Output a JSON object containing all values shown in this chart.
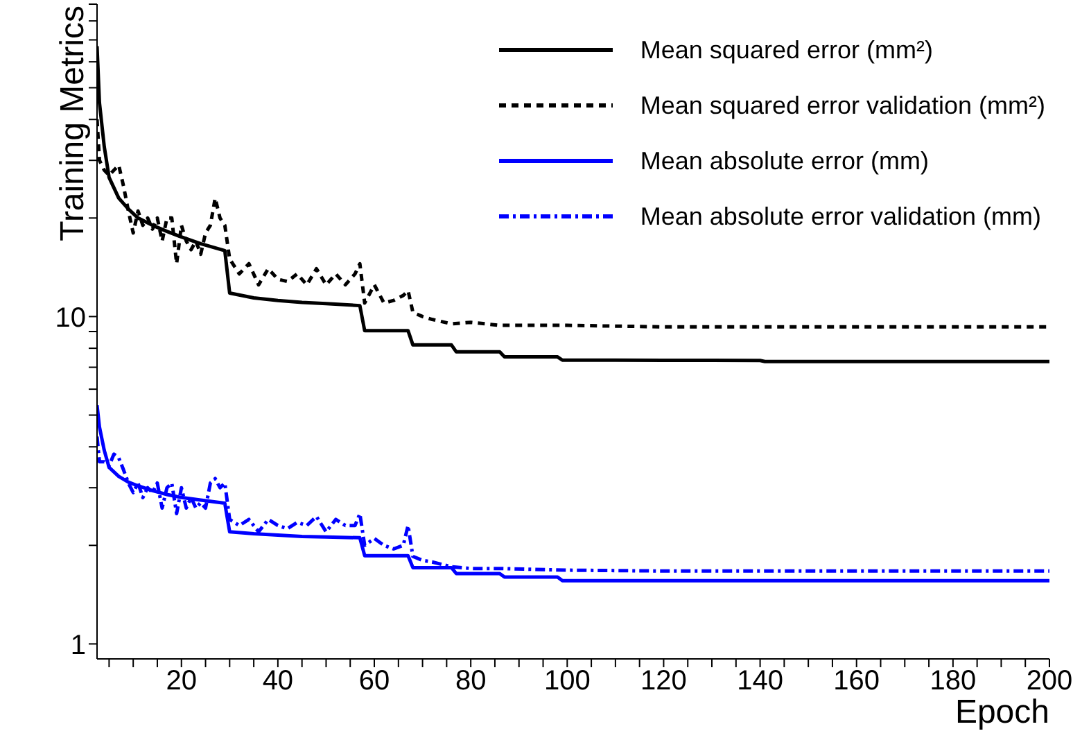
{
  "chart_data": {
    "type": "line",
    "xlabel": "Epoch",
    "ylabel": "Training Metrics",
    "log": "y",
    "grid": false,
    "legend": "top right",
    "marker": "none",
    "xlim": [
      2.5,
      200
    ],
    "ylim": [
      0.9,
      90
    ],
    "xticks": [
      {
        "value": 5,
        "label": null
      },
      {
        "value": 10,
        "label": null
      },
      {
        "value": 15,
        "label": null
      },
      20,
      {
        "value": 25,
        "label": null
      },
      {
        "value": 30,
        "label": null
      },
      {
        "value": 35,
        "label": null
      },
      40,
      {
        "value": 45,
        "label": null
      },
      {
        "value": 50,
        "label": null
      },
      {
        "value": 55,
        "label": null
      },
      60,
      {
        "value": 65,
        "label": null
      },
      {
        "value": 70,
        "label": null
      },
      {
        "value": 75,
        "label": null
      },
      80,
      {
        "value": 85,
        "label": null
      },
      {
        "value": 90,
        "label": null
      },
      {
        "value": 95,
        "label": null
      },
      100,
      {
        "value": 105,
        "label": null
      },
      {
        "value": 110,
        "label": null
      },
      {
        "value": 115,
        "label": null
      },
      120,
      {
        "value": 125,
        "label": null
      },
      {
        "value": 130,
        "label": null
      },
      {
        "value": 135,
        "label": null
      },
      140,
      {
        "value": 145,
        "label": null
      },
      {
        "value": 150,
        "label": null
      },
      {
        "value": 155,
        "label": null
      },
      160,
      {
        "value": 165,
        "label": null
      },
      {
        "value": 170,
        "label": null
      },
      {
        "value": 175,
        "label": null
      },
      180,
      {
        "value": 185,
        "label": null
      },
      {
        "value": 190,
        "label": null
      },
      {
        "value": 195,
        "label": null
      },
      200
    ],
    "yticks": [
      1,
      {
        "value": 2,
        "label": null
      },
      {
        "value": 3,
        "label": null
      },
      {
        "value": 4,
        "label": null
      },
      {
        "value": 5,
        "label": null
      },
      {
        "value": 6,
        "label": null
      },
      {
        "value": 7,
        "label": null
      },
      {
        "value": 8,
        "label": null
      },
      {
        "value": 9,
        "label": null
      },
      10,
      {
        "value": 20,
        "label": null
      },
      {
        "value": 30,
        "label": null
      },
      {
        "value": 40,
        "label": null
      },
      {
        "value": 50,
        "label": null
      },
      {
        "value": 60,
        "label": null
      },
      {
        "value": 70,
        "label": null
      },
      {
        "value": 80,
        "label": null
      },
      {
        "value": 90,
        "label": null
      }
    ],
    "series": [
      {
        "name": "Mean squared error (mm²)",
        "color": "#000000",
        "line_style": "solid",
        "x": [
          2.5,
          3,
          4,
          5,
          7,
          9,
          11,
          14,
          17,
          20,
          24,
          29,
          30,
          35,
          40,
          45,
          50,
          57,
          58,
          62,
          67,
          68,
          72,
          76,
          77,
          82,
          86,
          87,
          92,
          98,
          99,
          110,
          120,
          130,
          140,
          141,
          160,
          180,
          200
        ],
        "values": [
          67,
          45,
          33,
          26.6,
          23,
          21.3,
          20,
          19,
          18.2,
          17.5,
          16.7,
          15.9,
          11.8,
          11.4,
          11.2,
          11.05,
          10.95,
          10.8,
          9.05,
          9.05,
          9.05,
          8.19,
          8.19,
          8.19,
          7.8,
          7.8,
          7.8,
          7.53,
          7.53,
          7.53,
          7.36,
          7.36,
          7.35,
          7.35,
          7.34,
          7.29,
          7.29,
          7.29,
          7.29
        ]
      },
      {
        "name": "Mean squared error validation (mm²)",
        "color": "#000000",
        "line_style": "dashed",
        "x": [
          2.5,
          3,
          4,
          5,
          6,
          7,
          8,
          9,
          10,
          11,
          12,
          13,
          14,
          15,
          16,
          17,
          18,
          19,
          20,
          21,
          22,
          23,
          24,
          25,
          26,
          27,
          28,
          29,
          30,
          32,
          34,
          36,
          38,
          40,
          42,
          44,
          46,
          48,
          50,
          52,
          54,
          56,
          57,
          58,
          60,
          62,
          64,
          66,
          67,
          68,
          70,
          72,
          76,
          80,
          86,
          100,
          120,
          140,
          160,
          180,
          200
        ],
        "values": [
          40,
          30,
          28,
          27,
          28,
          29,
          25,
          21,
          18,
          21,
          19,
          20,
          18.5,
          20,
          17,
          20,
          20,
          14.5,
          19,
          17,
          16,
          17,
          15.5,
          18,
          19,
          23,
          20,
          19,
          15,
          13.5,
          14.5,
          12.5,
          14,
          13,
          12.8,
          13.5,
          12.5,
          14,
          12.5,
          13.5,
          12.5,
          13.5,
          14.5,
          11,
          12.5,
          11,
          11.2,
          11.6,
          12,
          10.3,
          10,
          9.8,
          9.5,
          9.6,
          9.4,
          9.4,
          9.3,
          9.3,
          9.3,
          9.3,
          9.3
        ]
      },
      {
        "name": "Mean absolute error (mm)",
        "color": "#0000ff",
        "line_style": "solid",
        "x": [
          2.5,
          3,
          4,
          5,
          7,
          9,
          11,
          14,
          17,
          20,
          24,
          29,
          30,
          35,
          40,
          45,
          50,
          57,
          58,
          62,
          67,
          68,
          72,
          76,
          77,
          82,
          86,
          87,
          92,
          98,
          99,
          120,
          140,
          160,
          180,
          200
        ],
        "values": [
          5.36,
          4.6,
          3.9,
          3.46,
          3.25,
          3.12,
          3.04,
          2.94,
          2.86,
          2.8,
          2.75,
          2.69,
          2.2,
          2.17,
          2.15,
          2.13,
          2.12,
          2.11,
          1.86,
          1.86,
          1.86,
          1.71,
          1.71,
          1.71,
          1.64,
          1.64,
          1.64,
          1.6,
          1.6,
          1.6,
          1.56,
          1.56,
          1.56,
          1.56,
          1.56,
          1.56
        ]
      },
      {
        "name": "Mean absolute error validation (mm)",
        "color": "#0000ff",
        "line_style": "dotted",
        "x": [
          2.5,
          3,
          4,
          5,
          6,
          7,
          8,
          9,
          10,
          11,
          12,
          13,
          14,
          15,
          16,
          17,
          18,
          19,
          20,
          21,
          22,
          23,
          24,
          25,
          26,
          27,
          28,
          29,
          30,
          32,
          34,
          36,
          38,
          40,
          42,
          44,
          46,
          48,
          50,
          52,
          54,
          56,
          57,
          58,
          60,
          62,
          64,
          66,
          67,
          68,
          70,
          72,
          76,
          80,
          86,
          100,
          120,
          140,
          160,
          180,
          200
        ],
        "values": [
          4.3,
          3.6,
          3.6,
          3.5,
          3.8,
          3.7,
          3.4,
          3.1,
          2.9,
          3.1,
          2.8,
          3.0,
          2.9,
          3.1,
          2.6,
          3.0,
          3.1,
          2.5,
          3.0,
          2.6,
          2.8,
          2.6,
          2.7,
          2.6,
          3.1,
          3.2,
          3.0,
          3.1,
          2.4,
          2.3,
          2.4,
          2.2,
          2.4,
          2.3,
          2.25,
          2.35,
          2.3,
          2.45,
          2.2,
          2.4,
          2.3,
          2.3,
          2.5,
          2.0,
          2.1,
          2.0,
          1.95,
          2.0,
          2.3,
          1.85,
          1.8,
          1.78,
          1.72,
          1.7,
          1.7,
          1.68,
          1.67,
          1.67,
          1.67,
          1.67,
          1.67
        ]
      }
    ]
  }
}
